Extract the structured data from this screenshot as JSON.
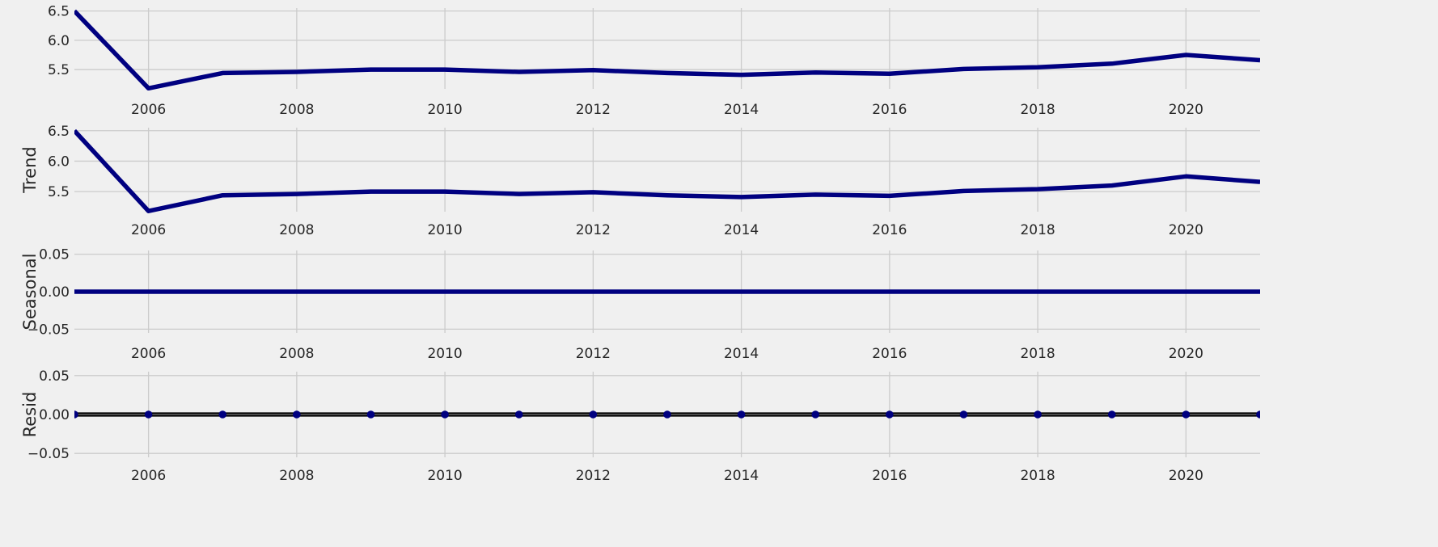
{
  "colors": {
    "background": "#f0f0f0",
    "grid": "#cbcbcb",
    "series": "#000080",
    "baseline": "#000000"
  },
  "chart_data": [
    {
      "type": "line",
      "panel": "observed",
      "ylabel": "",
      "x": [
        2005,
        2006,
        2007,
        2008,
        2009,
        2010,
        2011,
        2012,
        2013,
        2014,
        2015,
        2016,
        2017,
        2018,
        2019,
        2020,
        2021
      ],
      "values": [
        6.5,
        5.18,
        5.44,
        5.46,
        5.5,
        5.5,
        5.46,
        5.49,
        5.44,
        5.41,
        5.45,
        5.43,
        5.51,
        5.54,
        5.6,
        5.75,
        5.66
      ],
      "xlim": [
        2005,
        2021
      ],
      "ylim": [
        5.17,
        6.55
      ],
      "xticks": [
        "2006",
        "2008",
        "2010",
        "2012",
        "2014",
        "2016",
        "2018",
        "2020"
      ],
      "yticks": [
        "5.5",
        "6.0",
        "6.5"
      ],
      "grid": true
    },
    {
      "type": "line",
      "panel": "trend",
      "ylabel": "Trend",
      "x": [
        2005,
        2006,
        2007,
        2008,
        2009,
        2010,
        2011,
        2012,
        2013,
        2014,
        2015,
        2016,
        2017,
        2018,
        2019,
        2020,
        2021
      ],
      "values": [
        6.5,
        5.18,
        5.44,
        5.46,
        5.5,
        5.5,
        5.46,
        5.49,
        5.44,
        5.41,
        5.45,
        5.43,
        5.51,
        5.54,
        5.6,
        5.75,
        5.66
      ],
      "xlim": [
        2005,
        2021
      ],
      "ylim": [
        5.17,
        6.55
      ],
      "xticks": [
        "2006",
        "2008",
        "2010",
        "2012",
        "2014",
        "2016",
        "2018",
        "2020"
      ],
      "yticks": [
        "5.5",
        "6.0",
        "6.5"
      ],
      "grid": true
    },
    {
      "type": "line",
      "panel": "seasonal",
      "ylabel": "Seasonal",
      "x": [
        2005,
        2006,
        2007,
        2008,
        2009,
        2010,
        2011,
        2012,
        2013,
        2014,
        2015,
        2016,
        2017,
        2018,
        2019,
        2020,
        2021
      ],
      "values": [
        0,
        0,
        0,
        0,
        0,
        0,
        0,
        0,
        0,
        0,
        0,
        0,
        0,
        0,
        0,
        0,
        0
      ],
      "xlim": [
        2005,
        2021
      ],
      "ylim": [
        -0.055,
        0.055
      ],
      "xticks": [
        "2006",
        "2008",
        "2010",
        "2012",
        "2014",
        "2016",
        "2018",
        "2020"
      ],
      "yticks": [
        "−0.05",
        "0.00",
        "0.05"
      ],
      "grid": true
    },
    {
      "type": "scatter",
      "panel": "resid",
      "ylabel": "Resid",
      "x": [
        2005,
        2006,
        2007,
        2008,
        2009,
        2010,
        2011,
        2012,
        2013,
        2014,
        2015,
        2016,
        2017,
        2018,
        2019,
        2020,
        2021
      ],
      "values": [
        0,
        0,
        0,
        0,
        0,
        0,
        0,
        0,
        0,
        0,
        0,
        0,
        0,
        0,
        0,
        0,
        0
      ],
      "baseline": 0,
      "xlim": [
        2005,
        2021
      ],
      "ylim": [
        -0.055,
        0.055
      ],
      "xticks": [
        "2006",
        "2008",
        "2010",
        "2012",
        "2014",
        "2016",
        "2018",
        "2020"
      ],
      "yticks": [
        "−0.05",
        "0.00",
        "0.05"
      ],
      "grid": true
    }
  ]
}
